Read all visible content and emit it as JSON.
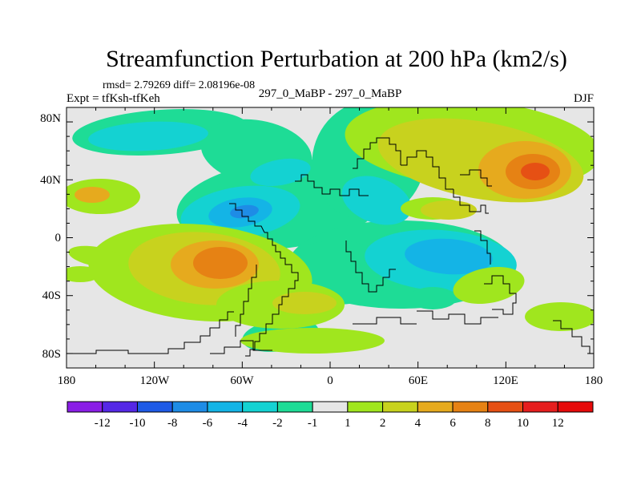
{
  "title": "Streamfunction Perturbation at 200 hPa (km2/s)",
  "stats_line": "rmsd= 2.79269 diff= 2.08196e-08",
  "expt_label": "Expt = tfKsh-tfKeh",
  "case_label": "297_0_MaBP - 297_0_MaBP",
  "season_label": "DJF",
  "chart_data": {
    "type": "heatmap",
    "title": "Streamfunction Perturbation at 200 hPa (km2/s)",
    "x_ticks": [
      "180",
      "120W",
      "60W",
      "0",
      "60E",
      "120E",
      "180"
    ],
    "y_ticks": [
      "80N",
      "40N",
      "0",
      "40S",
      "80S"
    ],
    "xlim": [
      -180,
      180
    ],
    "ylim": [
      -90,
      90
    ],
    "colorbar": {
      "labels": [
        "-12",
        "-10",
        "-8",
        "-6",
        "-4",
        "-2",
        "-1",
        "1",
        "2",
        "4",
        "6",
        "8",
        "10",
        "12"
      ],
      "colors": [
        "#8a1ee6",
        "#5528e6",
        "#1e5ae6",
        "#1e8ce6",
        "#14b4e6",
        "#14d2d2",
        "#1edc96",
        "#e6e6e6",
        "#a0e61e",
        "#c8d21e",
        "#e6aa1e",
        "#e68214",
        "#e65014",
        "#e61e1e",
        "#e60a0a"
      ]
    }
  }
}
